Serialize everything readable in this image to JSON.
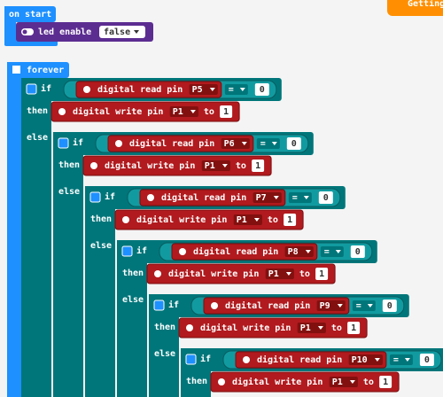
{
  "header_button": "Getting Started",
  "on_start": {
    "label": "on start",
    "block": {
      "label": "led enable",
      "value": "false"
    }
  },
  "forever": {
    "label": "forever",
    "levels": [
      {
        "if": "if",
        "condition": {
          "label": "digital read pin",
          "pin": "P5",
          "operator": "=",
          "value": "0"
        },
        "then": "then",
        "action": {
          "label": "digital write pin",
          "pin": "P1",
          "to": "to",
          "value": "1"
        },
        "else": "else"
      },
      {
        "if": "if",
        "condition": {
          "label": "digital read pin",
          "pin": "P6",
          "operator": "=",
          "value": "0"
        },
        "then": "then",
        "action": {
          "label": "digital write pin",
          "pin": "P1",
          "to": "to",
          "value": "1"
        },
        "else": "else"
      },
      {
        "if": "if",
        "condition": {
          "label": "digital read pin",
          "pin": "P7",
          "operator": "=",
          "value": "0"
        },
        "then": "then",
        "action": {
          "label": "digital write pin",
          "pin": "P1",
          "to": "to",
          "value": "1"
        },
        "else": "else"
      },
      {
        "if": "if",
        "condition": {
          "label": "digital read pin",
          "pin": "P8",
          "operator": "=",
          "value": "0"
        },
        "then": "then",
        "action": {
          "label": "digital write pin",
          "pin": "P1",
          "to": "to",
          "value": "1"
        },
        "else": "else"
      },
      {
        "if": "if",
        "condition": {
          "label": "digital read pin",
          "pin": "P9",
          "operator": "=",
          "value": "0"
        },
        "then": "then",
        "action": {
          "label": "digital write pin",
          "pin": "P1",
          "to": "to",
          "value": "1"
        },
        "else": "else"
      },
      {
        "if": "if",
        "condition": {
          "label": "digital read pin",
          "pin": "P10",
          "operator": "=",
          "value": "0"
        },
        "then": "then",
        "action": {
          "label": "digital write pin",
          "pin": "P1",
          "to": "to",
          "value": "1"
        }
      }
    ]
  }
}
